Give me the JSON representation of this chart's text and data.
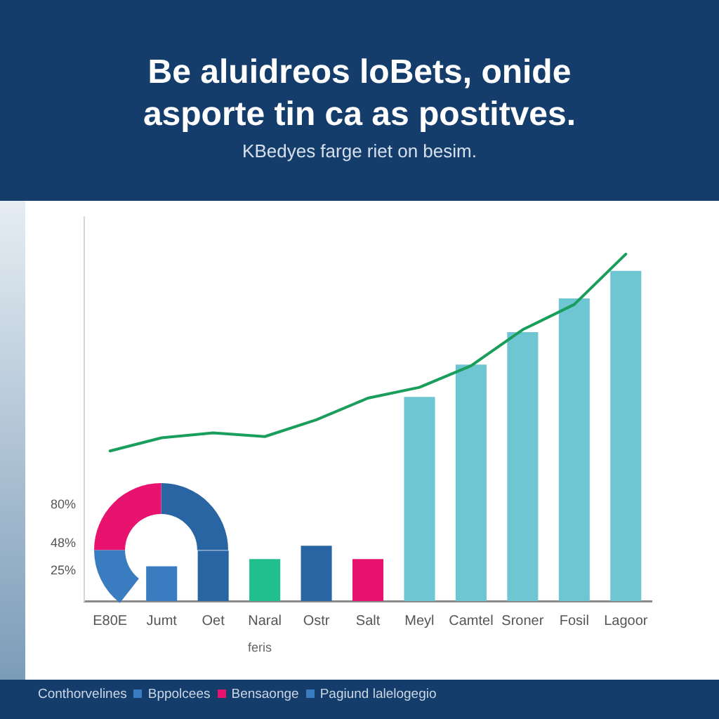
{
  "chart_data": {
    "type": "bar",
    "title": "Be aluidreos loBets, onide asporte tin ca as postitves.",
    "subtitle": "KBedyes farge riet on besim.",
    "xlabel": "feris",
    "categories": [
      "E80E",
      "Jumt",
      "Oet",
      "Naral",
      "Ostr",
      "Salt",
      "Meyl",
      "Camtel",
      "Sroner",
      "Fosil",
      "Lagoor"
    ],
    "series": [
      {
        "colors": [
          "#3a7cc0",
          "#3a7cc0",
          "#2a65a3",
          "#20bf8e",
          "#2a65a3",
          "#e8136f",
          "#6fc6d3",
          "#6fc6d3",
          "#6fc6d3",
          "#6fc6d3",
          "#6fc6d3"
        ],
        "values": [
          null,
          29,
          42,
          35,
          46,
          35,
          170,
          197,
          224,
          252,
          275
        ]
      },
      {
        "type": "line",
        "color": "#1a9e5c",
        "values": [
          125,
          136,
          140,
          137,
          151,
          169,
          178,
          196,
          226,
          247,
          289
        ]
      }
    ],
    "ylim": [
      0,
      320
    ],
    "yticks": [
      {
        "value": 25,
        "label": "25%"
      },
      {
        "value": 48,
        "label": "48%"
      },
      {
        "value": 80,
        "label": "80%"
      }
    ],
    "marker": "none",
    "annotations": [
      "Conthorvelines",
      "Bppolcees",
      "Bensaonge",
      "Pagiund lalelogegio"
    ]
  }
}
